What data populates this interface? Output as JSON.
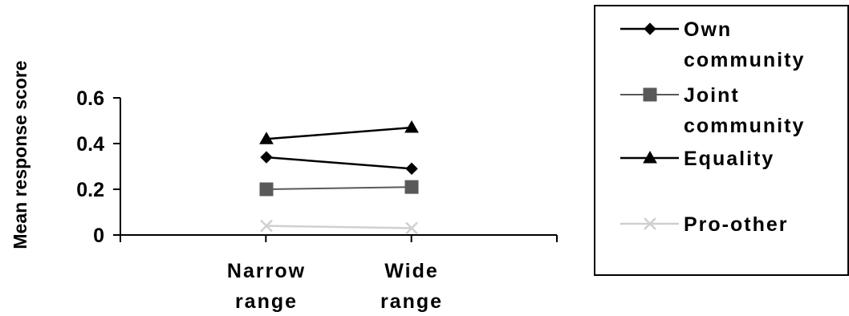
{
  "chart_data": {
    "type": "line",
    "categories": [
      "Narrow range",
      "Wide range"
    ],
    "category_lines": [
      [
        "Narrow",
        "range"
      ],
      [
        "Wide",
        "range"
      ]
    ],
    "ylabel": "Mean response score",
    "xlabel": "",
    "title": "",
    "ylim": [
      0,
      0.6
    ],
    "yticks": [
      0,
      0.2,
      0.4,
      0.6
    ],
    "ytick_labels": [
      "0",
      "0.2",
      "0.4",
      "0.6"
    ],
    "grid": false,
    "legend_position": "right",
    "series": [
      {
        "name": "Own community",
        "label_lines": [
          "Own",
          "community"
        ],
        "values": [
          0.34,
          0.29
        ],
        "color": "#000000",
        "marker": "diamond"
      },
      {
        "name": "Joint community",
        "label_lines": [
          "Joint",
          "community"
        ],
        "values": [
          0.2,
          0.21
        ],
        "color": "#595959",
        "marker": "square"
      },
      {
        "name": "Equality",
        "label_lines": [
          "Equality"
        ],
        "values": [
          0.42,
          0.47
        ],
        "color": "#000000",
        "marker": "triangle"
      },
      {
        "name": "Pro-other",
        "label_lines": [
          "Pro-other"
        ],
        "values": [
          0.04,
          0.03
        ],
        "color": "#d0d0d0",
        "marker": "x"
      }
    ]
  }
}
